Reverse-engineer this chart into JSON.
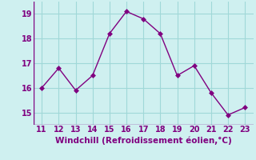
{
  "x": [
    11,
    12,
    13,
    14,
    15,
    16,
    17,
    18,
    19,
    20,
    21,
    22,
    23
  ],
  "y": [
    16.0,
    16.8,
    15.9,
    16.5,
    18.2,
    19.1,
    18.8,
    18.2,
    16.5,
    16.9,
    15.8,
    14.9,
    15.2
  ],
  "xlim": [
    10.5,
    23.5
  ],
  "ylim": [
    14.5,
    19.5
  ],
  "xticks": [
    11,
    12,
    13,
    14,
    15,
    16,
    17,
    18,
    19,
    20,
    21,
    22,
    23
  ],
  "yticks": [
    15,
    16,
    17,
    18,
    19
  ],
  "xlabel": "Windchill (Refroidissement éolien,°C)",
  "line_color": "#800080",
  "marker_color": "#800080",
  "bg_color": "#cff0f0",
  "grid_color": "#a0d8d8",
  "xlabel_fontsize": 7.5,
  "tick_fontsize": 7,
  "line_width": 1.0,
  "marker_size": 3
}
